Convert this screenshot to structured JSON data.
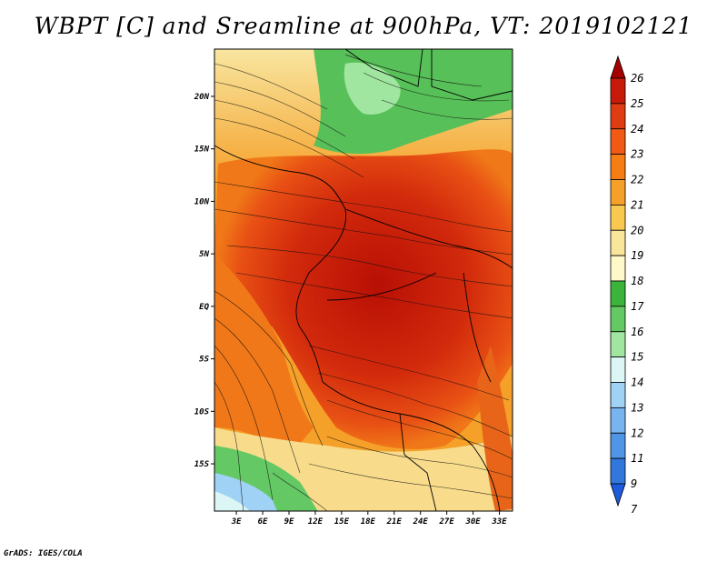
{
  "title": "WBPT [C] and Sreamline at 900hPa, VT: 2019102121",
  "credit": "GrADS: IGES/COLA",
  "map": {
    "lat_labels": [
      "20N",
      "15N",
      "10N",
      "5N",
      "EQ",
      "5S",
      "10S",
      "15S"
    ],
    "lat_values": [
      20,
      15,
      10,
      5,
      0,
      -5,
      -10,
      -15
    ],
    "lon_labels": [
      "3E",
      "6E",
      "9E",
      "12E",
      "15E",
      "18E",
      "21E",
      "24E",
      "27E",
      "30E",
      "33E"
    ],
    "lon_values": [
      3,
      6,
      9,
      12,
      15,
      18,
      21,
      24,
      27,
      30,
      33
    ],
    "lon_range": [
      0.5,
      34.5
    ],
    "lat_range": [
      -19.5,
      24.5
    ]
  },
  "colorbar": {
    "labels": [
      "26",
      "25",
      "24",
      "23",
      "22",
      "21",
      "20",
      "19",
      "18",
      "17",
      "16",
      "15",
      "14",
      "13",
      "12",
      "11",
      "9",
      "7"
    ],
    "colors": [
      "#a50000",
      "#c81a0a",
      "#e03c14",
      "#f05a14",
      "#f57d14",
      "#f5a028",
      "#f8c850",
      "#f8e69b",
      "#fff8c8",
      "#3cb43c",
      "#64c864",
      "#a0e6a0",
      "#dcf5f5",
      "#a0d2f5",
      "#78b4f0",
      "#5096e6",
      "#3278dc",
      "#1e5adc"
    ]
  }
}
